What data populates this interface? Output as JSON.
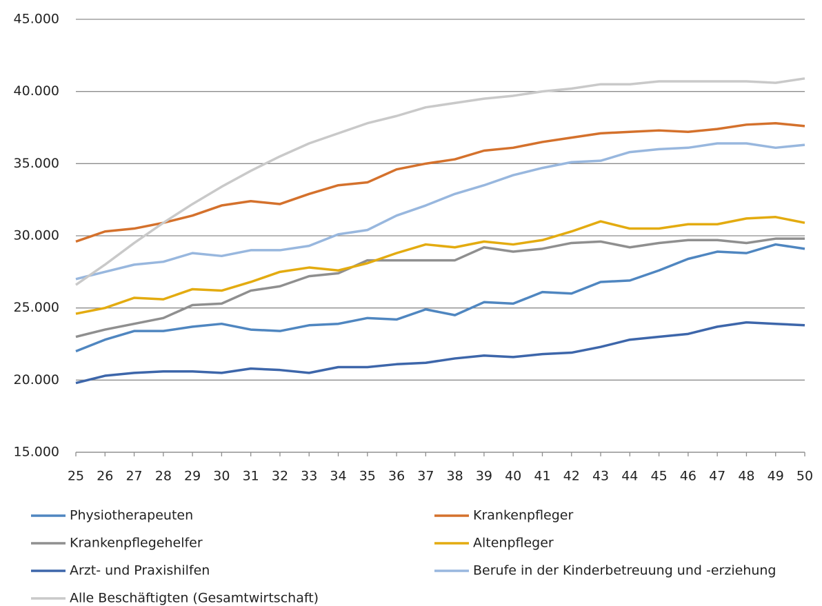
{
  "chart_data": {
    "type": "line",
    "x": [
      25,
      26,
      27,
      28,
      29,
      30,
      31,
      32,
      33,
      34,
      35,
      36,
      37,
      38,
      39,
      40,
      41,
      42,
      43,
      44,
      45,
      46,
      47,
      48,
      49,
      50
    ],
    "xlim": [
      25,
      50
    ],
    "xticks": [
      25,
      26,
      27,
      28,
      29,
      30,
      31,
      32,
      33,
      34,
      35,
      36,
      37,
      38,
      39,
      40,
      41,
      42,
      43,
      44,
      45,
      46,
      47,
      48,
      49,
      50
    ],
    "ylim": [
      15000,
      45000
    ],
    "yticks": [
      {
        "value": 15000,
        "label": "15.000"
      },
      {
        "value": 20000,
        "label": "20.000"
      },
      {
        "value": 25000,
        "label": "25.000"
      },
      {
        "value": 30000,
        "label": "30.000"
      },
      {
        "value": 35000,
        "label": "35.000"
      },
      {
        "value": 40000,
        "label": "40.000"
      },
      {
        "value": 45000,
        "label": "45.000"
      }
    ],
    "grid": true,
    "legend": "bottom",
    "series": [
      {
        "name": "Physiotherapeuten",
        "color": "#4f86c0",
        "values": [
          22000,
          22800,
          23400,
          23400,
          23700,
          23900,
          23500,
          23400,
          23800,
          23900,
          24300,
          24200,
          24900,
          24500,
          25400,
          25300,
          26100,
          26000,
          26800,
          26900,
          27600,
          28400,
          28900,
          28800,
          29400,
          29100
        ]
      },
      {
        "name": "Krankenpfleger",
        "color": "#d4712c",
        "values": [
          29600,
          30300,
          30500,
          30900,
          31400,
          32100,
          32400,
          32200,
          32900,
          33500,
          33700,
          34600,
          35000,
          35300,
          35900,
          36100,
          36500,
          36800,
          37100,
          37200,
          37300,
          37200,
          37400,
          37700,
          37800,
          37600
        ]
      },
      {
        "name": "Krankenpflegehelfer",
        "color": "#8f8f8f",
        "values": [
          23000,
          23500,
          23900,
          24300,
          25200,
          25300,
          26200,
          26500,
          27200,
          27400,
          28300,
          28300,
          28300,
          28300,
          29200,
          28900,
          29100,
          29500,
          29600,
          29200,
          29500,
          29700,
          29700,
          29500,
          29800,
          29800
        ]
      },
      {
        "name": "Altenpfleger",
        "color": "#e3ab10",
        "values": [
          24600,
          25000,
          25700,
          25600,
          26300,
          26200,
          26800,
          27500,
          27800,
          27600,
          28100,
          28800,
          29400,
          29200,
          29600,
          29400,
          29700,
          30300,
          31000,
          30500,
          30500,
          30800,
          30800,
          31200,
          31300,
          30900
        ]
      },
      {
        "name": "Arzt- und Praxishilfen",
        "color": "#3d66aa",
        "values": [
          19800,
          20300,
          20500,
          20600,
          20600,
          20500,
          20800,
          20700,
          20500,
          20900,
          20900,
          21100,
          21200,
          21500,
          21700,
          21600,
          21800,
          21900,
          22300,
          22800,
          23000,
          23200,
          23700,
          24000,
          23900,
          23800
        ]
      },
      {
        "name": "Berufe in der Kinderbetreuung und -erziehung",
        "color": "#98b7de",
        "values": [
          27000,
          27500,
          28000,
          28200,
          28800,
          28600,
          29000,
          29000,
          29300,
          30100,
          30400,
          31400,
          32100,
          32900,
          33500,
          34200,
          34700,
          35100,
          35200,
          35800,
          36000,
          36100,
          36400,
          36400,
          36100,
          36300
        ]
      },
      {
        "name": "Alle Beschäftigten (Gesamtwirtschaft)",
        "color": "#c9c9c9",
        "values": [
          26600,
          28000,
          29500,
          30900,
          32200,
          33400,
          34500,
          35500,
          36400,
          37100,
          37800,
          38300,
          38900,
          39200,
          39500,
          39700,
          40000,
          40200,
          40500,
          40500,
          40700,
          40700,
          40700,
          40700,
          40600,
          40900
        ]
      }
    ]
  }
}
